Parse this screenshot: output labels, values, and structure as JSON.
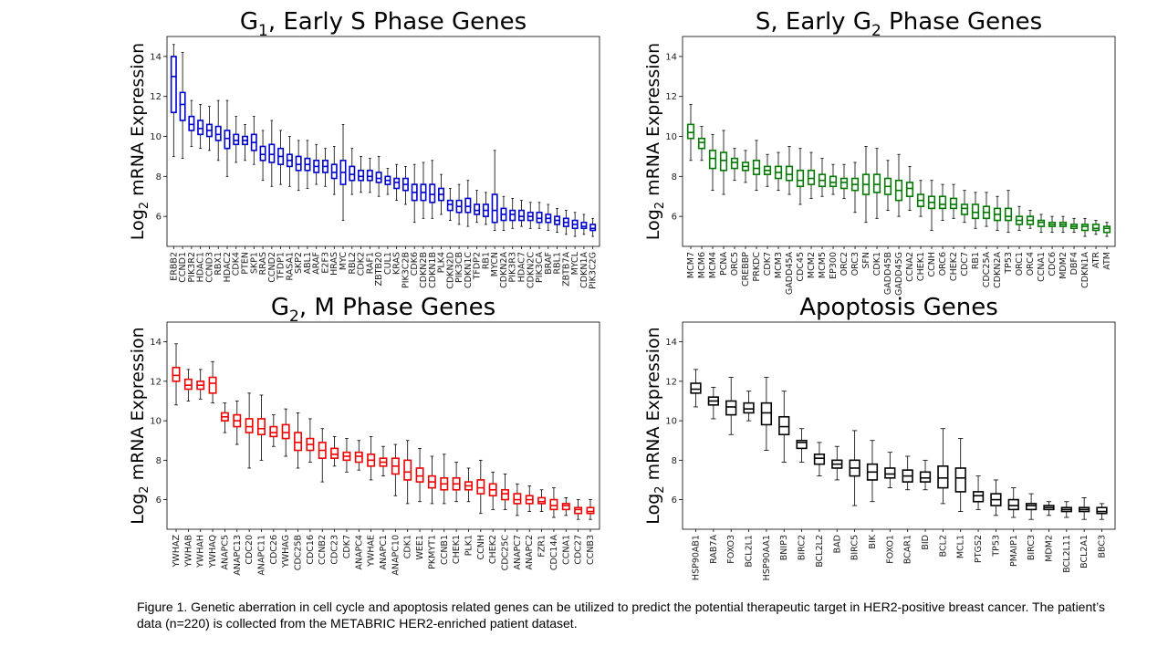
{
  "caption": "Figure 1. Genetic aberration in cell cycle and apoptosis related genes can be utilized to predict the potential therapeutic target in HER2-positive breast cancer. The patient’s data (n=220) is collected from the METABRIC HER2-enriched patient dataset.",
  "chart_data": [
    {
      "type": "box",
      "title": "G",
      "title_sub": "1",
      "title_rest": ", Early S Phase Genes",
      "ylabel": "Log",
      "ylabel_sub": "2",
      "ylabel_rest": " mRNA Expression",
      "ylim": [
        4.5,
        15
      ],
      "yticks": [
        6,
        8,
        10,
        12,
        14
      ],
      "color": "#0000cc",
      "categories": [
        "ERBB2",
        "CCND1",
        "PIK3R2",
        "HDAC1",
        "CCND3",
        "RBX1",
        "HDAC2",
        "CDK4",
        "PTEN",
        "SKP1",
        "RRAS",
        "CCND2",
        "TFDP1",
        "RASA1",
        "SKP2",
        "ABL1",
        "ARAF",
        "E2F3",
        "HRAS",
        "MYC",
        "RBL2",
        "CDK2",
        "RAF1",
        "ZBTB20",
        "CUL1",
        "KRAS",
        "PIK3C2B",
        "CDK6",
        "CDKN2B",
        "CDKN1B",
        "PLK4",
        "CDKN2D",
        "PIK3CB",
        "CDKN1C",
        "TFDP2",
        "RB1",
        "MYCN",
        "CDKN2A",
        "PIK3R3",
        "HDAC7",
        "CDKN2C",
        "PIK3CA",
        "BRAF",
        "RBL1",
        "ZBTB7A",
        "MYCL",
        "CDKN1A",
        "PIK3C2G"
      ],
      "stats": [
        [
          9.0,
          11.2,
          13.0,
          14.0,
          14.6
        ],
        [
          8.9,
          10.8,
          11.6,
          12.2,
          14.2
        ],
        [
          9.5,
          10.3,
          10.6,
          11.0,
          11.8
        ],
        [
          9.4,
          10.1,
          10.4,
          10.8,
          11.6
        ],
        [
          9.3,
          10.0,
          10.3,
          10.6,
          11.5
        ],
        [
          8.8,
          9.8,
          10.1,
          10.5,
          11.8
        ],
        [
          8.0,
          9.4,
          9.9,
          10.3,
          11.8
        ],
        [
          8.7,
          9.6,
          9.8,
          10.1,
          11.0
        ],
        [
          8.8,
          9.6,
          9.8,
          10.0,
          10.6
        ],
        [
          8.6,
          9.3,
          9.7,
          10.1,
          11.0
        ],
        [
          7.8,
          8.8,
          9.1,
          9.5,
          10.3
        ],
        [
          7.5,
          8.7,
          9.1,
          9.6,
          10.8
        ],
        [
          7.6,
          8.6,
          9.0,
          9.4,
          10.3
        ],
        [
          7.5,
          8.5,
          8.8,
          9.1,
          10.0
        ],
        [
          7.3,
          8.3,
          8.6,
          9.0,
          9.8
        ],
        [
          7.4,
          8.3,
          8.6,
          8.9,
          9.8
        ],
        [
          7.6,
          8.2,
          8.5,
          8.8,
          9.6
        ],
        [
          7.5,
          8.2,
          8.5,
          8.8,
          9.4
        ],
        [
          7.1,
          7.9,
          8.2,
          8.6,
          9.5
        ],
        [
          5.8,
          7.6,
          8.2,
          8.8,
          10.6
        ],
        [
          7.1,
          7.8,
          8.1,
          8.5,
          9.4
        ],
        [
          7.2,
          7.8,
          8.0,
          8.3,
          9.0
        ],
        [
          7.2,
          7.8,
          8.0,
          8.3,
          8.9
        ],
        [
          7.0,
          7.7,
          7.9,
          8.2,
          9.0
        ],
        [
          7.1,
          7.6,
          7.8,
          8.0,
          8.4
        ],
        [
          6.8,
          7.4,
          7.7,
          7.9,
          8.6
        ],
        [
          6.6,
          7.3,
          7.6,
          7.9,
          8.5
        ],
        [
          5.7,
          6.8,
          7.2,
          7.6,
          8.6
        ],
        [
          5.9,
          6.8,
          7.2,
          7.6,
          8.7
        ],
        [
          5.9,
          6.7,
          7.1,
          7.6,
          8.8
        ],
        [
          6.1,
          6.8,
          7.1,
          7.4,
          8.1
        ],
        [
          5.8,
          6.3,
          6.6,
          6.8,
          7.4
        ],
        [
          5.6,
          6.2,
          6.5,
          6.8,
          7.6
        ],
        [
          5.5,
          6.2,
          6.5,
          6.9,
          7.8
        ],
        [
          5.7,
          6.1,
          6.3,
          6.6,
          7.3
        ],
        [
          5.6,
          6.0,
          6.3,
          6.6,
          7.2
        ],
        [
          5.3,
          5.7,
          6.3,
          7.1,
          9.3
        ],
        [
          5.3,
          5.8,
          6.1,
          6.4,
          7.0
        ],
        [
          5.4,
          5.8,
          6.1,
          6.3,
          6.9
        ],
        [
          5.5,
          5.8,
          6.0,
          6.3,
          6.8
        ],
        [
          5.4,
          5.8,
          6.0,
          6.2,
          6.7
        ],
        [
          5.4,
          5.7,
          5.9,
          6.2,
          6.7
        ],
        [
          5.3,
          5.7,
          5.9,
          6.1,
          6.6
        ],
        [
          5.2,
          5.6,
          5.8,
          6.0,
          6.4
        ],
        [
          5.1,
          5.5,
          5.7,
          5.9,
          6.3
        ],
        [
          5.0,
          5.4,
          5.6,
          5.8,
          6.2
        ],
        [
          5.1,
          5.4,
          5.5,
          5.7,
          6.1
        ],
        [
          5.0,
          5.3,
          5.4,
          5.6,
          5.9
        ]
      ]
    },
    {
      "type": "box",
      "title": "S, Early G",
      "title_sub": "2",
      "title_rest": " Phase Genes",
      "ylabel": "Log",
      "ylabel_sub": "2",
      "ylabel_rest": " mRNA Expression",
      "ylim": [
        4.5,
        15
      ],
      "yticks": [
        6,
        8,
        10,
        12,
        14
      ],
      "color": "#007a00",
      "categories": [
        "MCM7",
        "MCM6",
        "MCM4",
        "PCNA",
        "ORC5",
        "CREBBP",
        "PRKDC",
        "CDK7",
        "MCM3",
        "GADD45A",
        "CDC45",
        "MCM2",
        "MCM5",
        "EP300",
        "ORC2",
        "ORC3",
        "SFN",
        "CDK1",
        "GADD45B",
        "GADD45G",
        "CCNA2",
        "CHEK1",
        "CCNH",
        "ORC6",
        "CHEK2",
        "CDC7",
        "RB1",
        "CDC25A",
        "CDKN2A",
        "TP53",
        "ORC1",
        "ORC4",
        "CCNA1",
        "CDC6",
        "MDM2",
        "DBF4",
        "CDKN1A",
        "ATR",
        "ATM"
      ],
      "stats": [
        [
          8.8,
          9.9,
          10.2,
          10.6,
          11.6
        ],
        [
          8.8,
          9.4,
          9.7,
          9.9,
          10.5
        ],
        [
          7.3,
          8.4,
          8.9,
          9.3,
          10.1
        ],
        [
          7.1,
          8.3,
          8.8,
          9.2,
          10.3
        ],
        [
          7.8,
          8.4,
          8.7,
          8.9,
          9.4
        ],
        [
          7.7,
          8.3,
          8.5,
          8.7,
          9.3
        ],
        [
          7.3,
          8.1,
          8.4,
          8.8,
          9.8
        ],
        [
          7.5,
          8.1,
          8.3,
          8.5,
          9.1
        ],
        [
          7.3,
          7.9,
          8.2,
          8.5,
          9.2
        ],
        [
          7.1,
          7.8,
          8.1,
          8.5,
          9.5
        ],
        [
          6.6,
          7.5,
          7.8,
          8.3,
          9.4
        ],
        [
          6.9,
          7.6,
          7.9,
          8.3,
          9.2
        ],
        [
          7.0,
          7.5,
          7.8,
          8.1,
          8.9
        ],
        [
          7.1,
          7.5,
          7.7,
          8.0,
          8.6
        ],
        [
          6.9,
          7.4,
          7.7,
          7.9,
          8.6
        ],
        [
          6.2,
          7.3,
          7.6,
          7.9,
          8.7
        ],
        [
          5.7,
          7.1,
          7.6,
          8.1,
          9.5
        ],
        [
          5.9,
          7.2,
          7.6,
          8.1,
          9.4
        ],
        [
          6.3,
          7.1,
          7.5,
          7.9,
          8.8
        ],
        [
          6.0,
          6.8,
          7.3,
          7.8,
          9.1
        ],
        [
          6.3,
          7.0,
          7.4,
          7.7,
          8.5
        ],
        [
          6.0,
          6.5,
          6.8,
          7.1,
          7.8
        ],
        [
          5.3,
          6.4,
          6.7,
          7.0,
          7.8
        ],
        [
          5.8,
          6.4,
          6.6,
          7.0,
          7.6
        ],
        [
          5.9,
          6.4,
          6.6,
          6.9,
          7.6
        ],
        [
          5.7,
          6.1,
          6.4,
          6.6,
          7.3
        ],
        [
          5.4,
          5.9,
          6.2,
          6.6,
          7.2
        ],
        [
          5.5,
          5.9,
          6.2,
          6.5,
          7.2
        ],
        [
          5.3,
          5.8,
          6.1,
          6.4,
          7.0
        ],
        [
          5.2,
          5.8,
          6.0,
          6.4,
          7.3
        ],
        [
          5.3,
          5.6,
          5.8,
          6.0,
          6.5
        ],
        [
          5.4,
          5.6,
          5.8,
          6.0,
          6.3
        ],
        [
          5.2,
          5.5,
          5.7,
          5.8,
          6.1
        ],
        [
          5.2,
          5.5,
          5.6,
          5.7,
          6.0
        ],
        [
          5.2,
          5.5,
          5.6,
          5.7,
          6.0
        ],
        [
          5.2,
          5.4,
          5.5,
          5.6,
          5.9
        ],
        [
          5.0,
          5.3,
          5.5,
          5.6,
          5.9
        ],
        [
          5.1,
          5.3,
          5.4,
          5.6,
          5.8
        ],
        [
          5.0,
          5.2,
          5.4,
          5.5,
          5.7
        ]
      ]
    },
    {
      "type": "box",
      "title": "G",
      "title_sub": "2",
      "title_rest": ", M Phase Genes",
      "ylabel": "Log",
      "ylabel_sub": "2",
      "ylabel_rest": " mRNA Expression",
      "ylim": [
        4.5,
        15
      ],
      "yticks": [
        6,
        8,
        10,
        12,
        14
      ],
      "color": "#ee0000",
      "categories": [
        "YWHAZ",
        "YWHAB",
        "YWHAH",
        "YWHAQ",
        "ANAPC5",
        "ANAPC13",
        "CDC20",
        "ANAPC11",
        "CDC26",
        "YWHAG",
        "CDC25B",
        "CDC16",
        "CCNB2",
        "CDC23",
        "CDK7",
        "ANAPC4",
        "YWHAE",
        "ANAPC1",
        "ANAPC10",
        "CDK1",
        "WEE1",
        "PKMYT1",
        "CCNB1",
        "CHEK1",
        "PLK1",
        "CCNH",
        "CHEK2",
        "CDC25C",
        "ANAPC7",
        "ANAPC2",
        "FZR1",
        "CDC14A",
        "CCNA1",
        "CDC27",
        "CCNB3"
      ],
      "stats": [
        [
          10.8,
          12.0,
          12.3,
          12.7,
          13.9
        ],
        [
          11.0,
          11.6,
          11.8,
          12.1,
          12.6
        ],
        [
          11.1,
          11.6,
          11.8,
          12.0,
          12.6
        ],
        [
          10.9,
          11.4,
          11.9,
          12.2,
          13.0
        ],
        [
          9.4,
          10.0,
          10.2,
          10.4,
          10.9
        ],
        [
          8.8,
          9.7,
          10.0,
          10.3,
          11.0
        ],
        [
          7.6,
          9.4,
          9.7,
          10.1,
          11.4
        ],
        [
          8.0,
          9.3,
          9.6,
          10.1,
          11.3
        ],
        [
          8.7,
          9.2,
          9.4,
          9.7,
          10.3
        ],
        [
          8.2,
          9.1,
          9.4,
          9.8,
          10.6
        ],
        [
          7.6,
          8.5,
          8.9,
          9.4,
          10.4
        ],
        [
          7.9,
          8.5,
          8.8,
          9.1,
          10.1
        ],
        [
          6.9,
          8.1,
          8.5,
          8.9,
          9.6
        ],
        [
          7.7,
          8.1,
          8.3,
          8.6,
          9.2
        ],
        [
          7.4,
          8.0,
          8.2,
          8.4,
          9.1
        ],
        [
          7.5,
          7.9,
          8.2,
          8.4,
          9.0
        ],
        [
          7.0,
          7.7,
          8.0,
          8.3,
          9.2
        ],
        [
          7.2,
          7.7,
          7.9,
          8.1,
          8.7
        ],
        [
          6.2,
          7.3,
          7.7,
          8.1,
          8.8
        ],
        [
          5.8,
          7.0,
          7.4,
          8.0,
          9.0
        ],
        [
          5.9,
          6.9,
          7.2,
          7.6,
          8.6
        ],
        [
          5.8,
          6.6,
          6.9,
          7.2,
          8.2
        ],
        [
          5.8,
          6.5,
          6.8,
          7.1,
          8.3
        ],
        [
          5.9,
          6.5,
          6.8,
          7.1,
          7.9
        ],
        [
          5.9,
          6.5,
          6.7,
          6.9,
          7.6
        ],
        [
          5.3,
          6.3,
          6.6,
          7.0,
          8.0
        ],
        [
          5.5,
          6.2,
          6.5,
          6.8,
          7.4
        ],
        [
          5.5,
          6.0,
          6.3,
          6.5,
          7.3
        ],
        [
          5.2,
          5.8,
          6.0,
          6.3,
          6.8
        ],
        [
          5.4,
          5.8,
          6.0,
          6.2,
          6.7
        ],
        [
          5.4,
          5.8,
          5.9,
          6.1,
          6.5
        ],
        [
          5.1,
          5.5,
          5.7,
          6.0,
          6.6
        ],
        [
          5.2,
          5.5,
          5.7,
          5.8,
          6.1
        ],
        [
          5.0,
          5.3,
          5.5,
          5.6,
          6.0
        ],
        [
          5.0,
          5.3,
          5.4,
          5.6,
          6.0
        ]
      ]
    },
    {
      "type": "box",
      "title": "Apoptosis Genes",
      "title_sub": "",
      "title_rest": "",
      "ylabel": "Log",
      "ylabel_sub": "2",
      "ylabel_rest": " mRNA Expression",
      "ylim": [
        4.5,
        15
      ],
      "yticks": [
        6,
        8,
        10,
        12,
        14
      ],
      "color": "#000000",
      "categories": [
        "HSP90AB1",
        "RAB7A",
        "FOXO3",
        "BCL2L1",
        "HSP90AA1",
        "BNIP3",
        "BIRC2",
        "BCL2L2",
        "BAD",
        "BIRC5",
        "BIK",
        "FOXO1",
        "BCAR1",
        "BID",
        "BCL2",
        "MCL1",
        "PTGS2",
        "TP53",
        "PMAIP1",
        "BIRC3",
        "MDM2",
        "BCL2L11",
        "BCL2A1",
        "BBC3"
      ],
      "stats": [
        [
          10.7,
          11.4,
          11.6,
          11.9,
          12.6
        ],
        [
          10.1,
          10.8,
          11.0,
          11.2,
          11.7
        ],
        [
          9.3,
          10.3,
          10.7,
          11.0,
          12.2
        ],
        [
          10.0,
          10.4,
          10.6,
          10.9,
          11.5
        ],
        [
          8.5,
          9.8,
          10.4,
          10.9,
          12.2
        ],
        [
          7.9,
          9.3,
          9.7,
          10.2,
          11.5
        ],
        [
          7.9,
          8.6,
          8.9,
          9.0,
          9.6
        ],
        [
          7.2,
          7.8,
          8.1,
          8.3,
          8.9
        ],
        [
          7.0,
          7.6,
          7.8,
          8.0,
          8.7
        ],
        [
          5.7,
          7.2,
          7.6,
          8.0,
          9.5
        ],
        [
          5.9,
          7.0,
          7.4,
          7.8,
          9.0
        ],
        [
          6.6,
          7.1,
          7.3,
          7.6,
          8.4
        ],
        [
          6.5,
          6.9,
          7.2,
          7.5,
          8.2
        ],
        [
          6.5,
          6.9,
          7.1,
          7.4,
          8.0
        ],
        [
          5.8,
          6.6,
          7.1,
          7.7,
          9.6
        ],
        [
          5.4,
          6.4,
          7.1,
          7.6,
          9.1
        ],
        [
          5.5,
          5.9,
          6.2,
          6.4,
          7.2
        ],
        [
          5.2,
          5.7,
          6.0,
          6.3,
          7.0
        ],
        [
          5.1,
          5.5,
          5.7,
          6.0,
          6.6
        ],
        [
          5.0,
          5.5,
          5.7,
          5.8,
          6.3
        ],
        [
          5.2,
          5.5,
          5.6,
          5.7,
          5.9
        ],
        [
          5.1,
          5.4,
          5.5,
          5.6,
          5.9
        ],
        [
          5.0,
          5.4,
          5.5,
          5.6,
          6.1
        ],
        [
          5.0,
          5.3,
          5.4,
          5.6,
          5.8
        ]
      ]
    }
  ]
}
